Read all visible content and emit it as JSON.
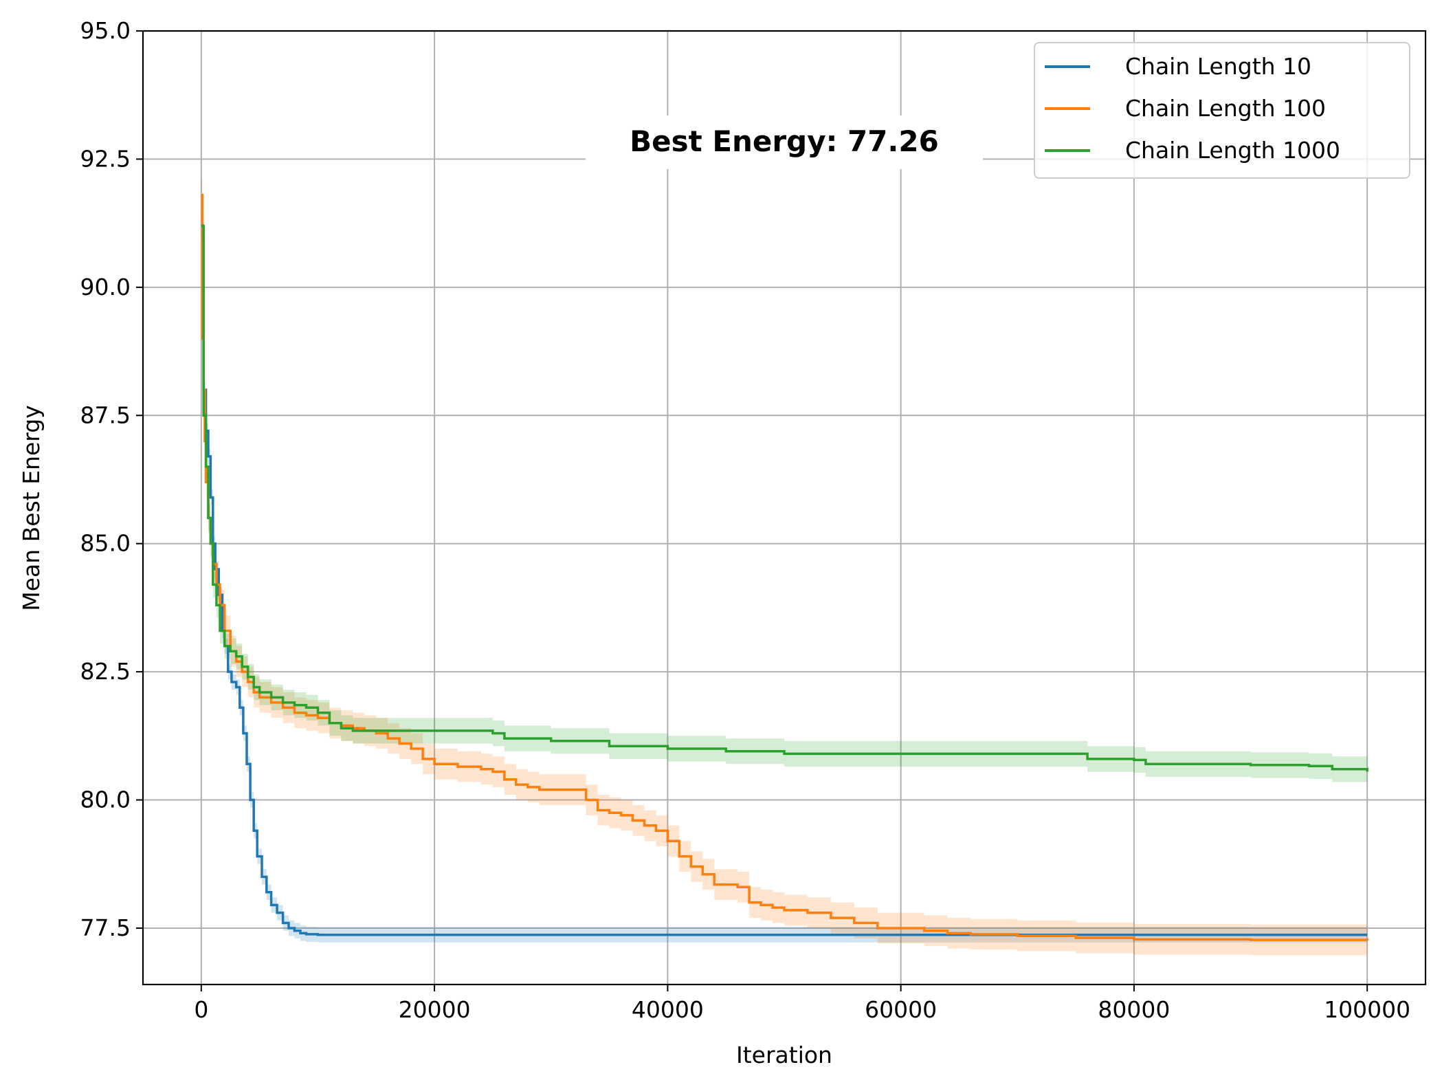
{
  "chart_data": {
    "type": "line",
    "title": "",
    "xlabel": "Iteration",
    "ylabel": "Mean Best Energy",
    "xlim": [
      -5000,
      105000
    ],
    "ylim": [
      76.4,
      95.0
    ],
    "x_ticks": [
      0,
      20000,
      40000,
      60000,
      80000,
      100000
    ],
    "x_tick_labels": [
      "0",
      "20000",
      "40000",
      "60000",
      "80000",
      "100000"
    ],
    "y_ticks": [
      77.5,
      80.0,
      82.5,
      85.0,
      87.5,
      90.0,
      92.5,
      95.0
    ],
    "y_tick_labels": [
      "77.5",
      "80.0",
      "82.5",
      "85.0",
      "87.5",
      "90.0",
      "92.5",
      "95.0"
    ],
    "grid": true,
    "legend_position": "top-right",
    "annotation": {
      "text": "Best Energy: 77.26",
      "color": "#ff7f0e"
    },
    "series": [
      {
        "name": "Chain Length 10",
        "color": "#1f77b4",
        "band": 0.15,
        "x": [
          0,
          200,
          400,
          600,
          800,
          1000,
          1200,
          1500,
          1800,
          2000,
          2300,
          2600,
          3000,
          3300,
          3600,
          3900,
          4200,
          4500,
          4800,
          5200,
          5600,
          6000,
          6500,
          7000,
          7500,
          8000,
          8500,
          9000,
          10000,
          11000,
          12000,
          15000,
          20000,
          40000,
          60000,
          80000,
          100000
        ],
        "y": [
          91.1,
          88.0,
          87.2,
          86.7,
          85.9,
          85.0,
          84.5,
          84.0,
          83.3,
          83.0,
          82.5,
          82.3,
          82.2,
          81.8,
          81.3,
          80.7,
          80.0,
          79.4,
          78.9,
          78.5,
          78.2,
          77.95,
          77.8,
          77.6,
          77.5,
          77.45,
          77.4,
          77.38,
          77.37,
          77.37,
          77.37,
          77.37,
          77.37,
          77.37,
          77.37,
          77.37,
          77.37
        ]
      },
      {
        "name": "Chain Length 100",
        "color": "#ff7f0e",
        "band": 0.3,
        "x": [
          0,
          100,
          200,
          300,
          400,
          600,
          800,
          1000,
          1300,
          1600,
          2000,
          2500,
          3000,
          3500,
          4000,
          4500,
          5000,
          6000,
          7000,
          8000,
          9000,
          10000,
          11000,
          12000,
          13000,
          14000,
          15000,
          16000,
          17000,
          18000,
          19000,
          20000,
          22000,
          24000,
          25000,
          26000,
          27000,
          28000,
          29000,
          30000,
          32000,
          33000,
          34000,
          35000,
          36000,
          37000,
          38000,
          39000,
          40000,
          41000,
          42000,
          43000,
          44000,
          45000,
          46000,
          47000,
          48000,
          49000,
          50000,
          52000,
          54000,
          56000,
          58000,
          60000,
          62000,
          64000,
          66000,
          70000,
          75000,
          80000,
          90000,
          100000
        ],
        "y": [
          91.8,
          89.0,
          88.0,
          87.0,
          86.2,
          85.5,
          85.0,
          84.6,
          84.2,
          83.8,
          83.3,
          82.9,
          82.7,
          82.5,
          82.3,
          82.1,
          82.0,
          81.9,
          81.8,
          81.7,
          81.65,
          81.6,
          81.5,
          81.45,
          81.4,
          81.35,
          81.3,
          81.2,
          81.1,
          81.0,
          80.8,
          80.7,
          80.65,
          80.6,
          80.55,
          80.4,
          80.3,
          80.25,
          80.2,
          80.2,
          80.2,
          80.0,
          79.8,
          79.75,
          79.7,
          79.6,
          79.5,
          79.4,
          79.2,
          78.9,
          78.7,
          78.55,
          78.35,
          78.35,
          78.3,
          78.0,
          77.95,
          77.9,
          77.85,
          77.8,
          77.7,
          77.6,
          77.5,
          77.5,
          77.45,
          77.4,
          77.38,
          77.35,
          77.31,
          77.28,
          77.27,
          77.26
        ]
      },
      {
        "name": "Chain Length 1000",
        "color": "#2ca02c",
        "band": 0.25,
        "x": [
          0,
          200,
          400,
          600,
          800,
          1000,
          1300,
          1600,
          2000,
          2500,
          3000,
          3500,
          4000,
          4500,
          5000,
          6000,
          7000,
          8000,
          9000,
          10000,
          11000,
          12000,
          13000,
          15000,
          20000,
          25000,
          26000,
          30000,
          35000,
          40000,
          45000,
          50000,
          55000,
          60000,
          70000,
          75000,
          76000,
          78000,
          80000,
          81000,
          85000,
          90000,
          95000,
          97000,
          100000
        ],
        "y": [
          91.2,
          87.5,
          86.5,
          85.5,
          85.0,
          84.2,
          83.8,
          83.3,
          83.0,
          82.9,
          82.8,
          82.6,
          82.4,
          82.2,
          82.1,
          82.0,
          81.9,
          81.85,
          81.8,
          81.7,
          81.5,
          81.4,
          81.35,
          81.35,
          81.35,
          81.3,
          81.2,
          81.15,
          81.05,
          81.0,
          80.95,
          80.9,
          80.9,
          80.9,
          80.9,
          80.9,
          80.8,
          80.8,
          80.78,
          80.7,
          80.7,
          80.68,
          80.66,
          80.6,
          80.55
        ]
      }
    ]
  }
}
